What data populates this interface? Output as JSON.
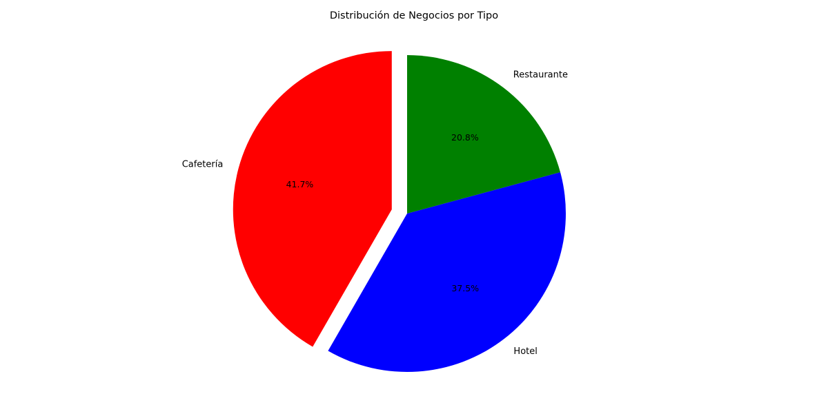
{
  "chart_data": {
    "type": "pie",
    "title": "Distribución de Negocios por Tipo",
    "categories": [
      "Cafetería",
      "Hotel",
      "Restaurante"
    ],
    "values": [
      41.7,
      37.5,
      20.8
    ],
    "value_labels": [
      "41.7%",
      "37.5%",
      "20.8%"
    ],
    "colors": [
      "#ff0000",
      "#0000ff",
      "#008000"
    ],
    "exploded": [
      true,
      false,
      false
    ],
    "start_angle_degrees": 90,
    "direction": "counterclockwise",
    "legend": "none"
  }
}
